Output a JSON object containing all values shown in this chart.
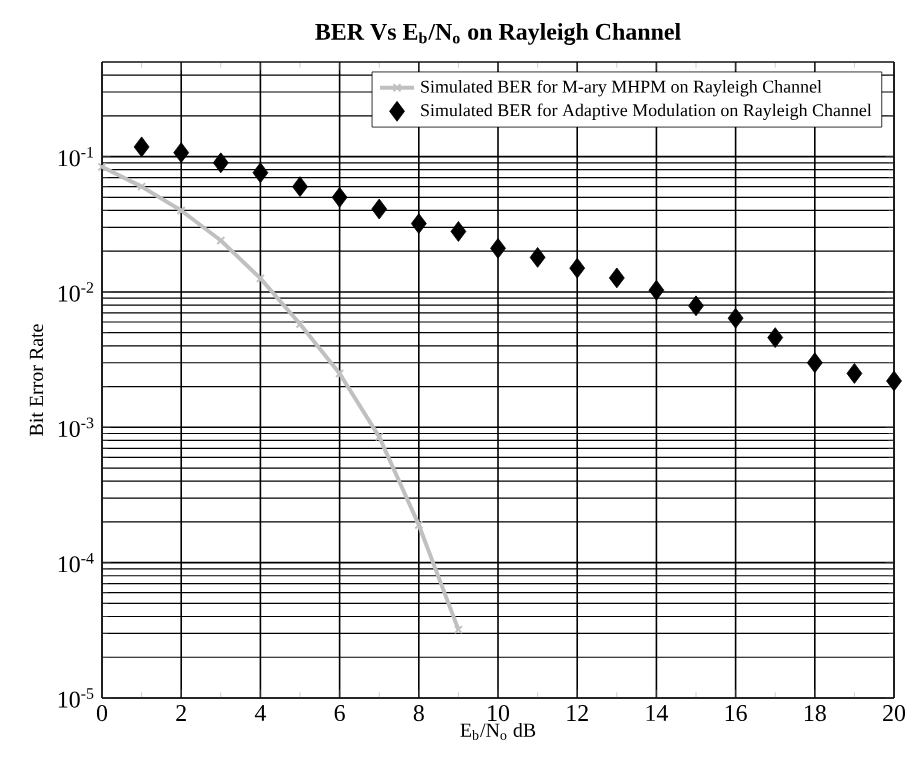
{
  "chart_data": {
    "type": "line",
    "title": "BER Vs E$_{b}$/N$_{o}$ on Rayleigh Channel",
    "xlabel": "E$_{b}$/N$_{o}$ dB",
    "ylabel": "Bit Error Rate",
    "log": "y",
    "grid": true,
    "legend": "top right",
    "xlim": [
      0,
      20
    ],
    "xticks": [
      0,
      2,
      4,
      6,
      8,
      10,
      12,
      14,
      16,
      18,
      20
    ],
    "ylim": [
      1e-05,
      0.5
    ],
    "yticks": [
      {
        "value": 0.1,
        "label": "10$^{-1}$"
      },
      {
        "value": 0.01,
        "label": "10$^{-2}$"
      },
      {
        "value": 0.001,
        "label": "10$^{-3}$"
      },
      {
        "value": 0.0001,
        "label": "10$^{-4}$"
      },
      {
        "value": 1e-05,
        "label": "10$^{-5}$"
      }
    ],
    "series": [
      {
        "name": "Simulated BER for M-ary MHPM on Rayleigh Channel",
        "color": "#c0c0c0",
        "marker": "cross",
        "x": [
          0,
          1,
          2,
          3,
          4,
          5,
          6,
          7,
          8,
          9
        ],
        "values": [
          0.084,
          0.06,
          0.04,
          0.024,
          0.0126,
          0.0058,
          0.0025,
          0.00085,
          0.00019,
          3.2e-05
        ]
      },
      {
        "name": "Simulated BER for Adaptive Modulation on Rayleigh Channel",
        "type": "scatter",
        "color": "#000000",
        "marker": "diamond",
        "x": [
          1,
          2,
          3,
          4,
          5,
          6,
          7,
          8,
          9,
          10,
          11,
          12,
          13,
          14,
          15,
          16,
          17,
          18,
          19,
          20
        ],
        "values": [
          0.118,
          0.107,
          0.09,
          0.076,
          0.06,
          0.05,
          0.041,
          0.032,
          0.028,
          0.021,
          0.018,
          0.015,
          0.0127,
          0.0103,
          0.0079,
          0.0064,
          0.0046,
          0.003,
          0.0025,
          0.0022
        ]
      }
    ]
  }
}
